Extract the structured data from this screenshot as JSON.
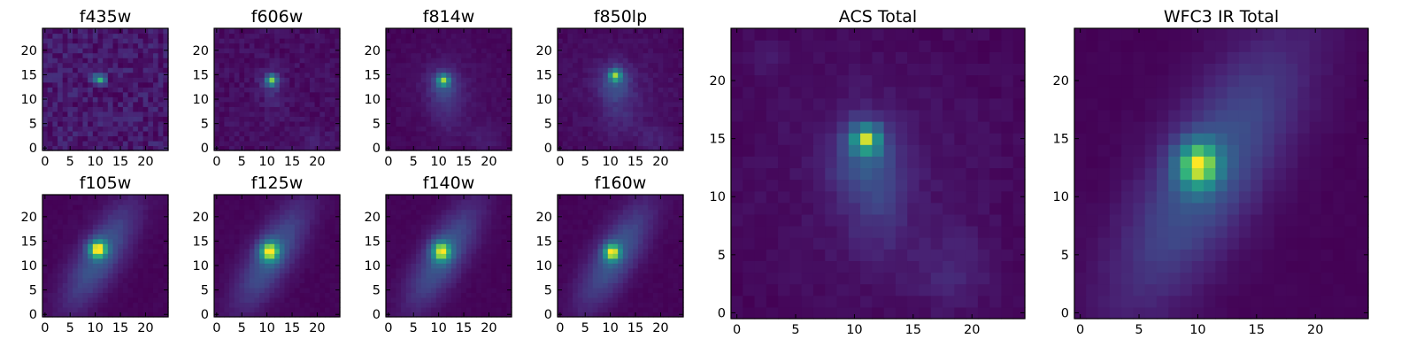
{
  "figure": {
    "colormap": "viridis",
    "chart_data": [
      {
        "type": "heatmap",
        "title": "f435w",
        "grid_size": 25,
        "noise": 0.14,
        "max_level": 0.75,
        "x_ticks": [
          0,
          5,
          10,
          15,
          20
        ],
        "y_ticks": [
          0,
          5,
          10,
          15,
          20
        ],
        "xlim": [
          -0.5,
          24.5
        ],
        "ylim": [
          -0.5,
          24.5
        ],
        "components": [
          {
            "cx": 11,
            "cy": 14,
            "sx": 0.7,
            "sy": 0.7,
            "rho": 0,
            "amp": 1.0
          },
          {
            "cx": 10.2,
            "cy": 14.6,
            "sx": 0.8,
            "sy": 0.6,
            "rho": 0,
            "amp": 0.35
          }
        ]
      },
      {
        "type": "heatmap",
        "title": "f606w",
        "grid_size": 25,
        "noise": 0.07,
        "max_level": 0.85,
        "x_ticks": [
          0,
          5,
          10,
          15,
          20
        ],
        "y_ticks": [
          0,
          5,
          10,
          15,
          20
        ],
        "xlim": [
          -0.5,
          24.5
        ],
        "ylim": [
          -0.5,
          24.5
        ],
        "components": [
          {
            "cx": 11,
            "cy": 14,
            "sx": 0.8,
            "sy": 0.8,
            "rho": 0,
            "amp": 1.0
          },
          {
            "cx": 10.5,
            "cy": 13.5,
            "sx": 1.8,
            "sy": 1.8,
            "rho": 0,
            "amp": 0.18
          },
          {
            "cx": 11.5,
            "cy": 10,
            "sx": 1.5,
            "sy": 2.5,
            "rho": 0,
            "amp": 0.1
          },
          {
            "cx": 19,
            "cy": 2,
            "sx": 2.5,
            "sy": 2.0,
            "rho": 0,
            "amp": 0.06
          }
        ]
      },
      {
        "type": "heatmap",
        "title": "f814w",
        "grid_size": 25,
        "noise": 0.04,
        "max_level": 0.9,
        "x_ticks": [
          0,
          5,
          10,
          15,
          20
        ],
        "y_ticks": [
          0,
          5,
          10,
          15,
          20
        ],
        "xlim": [
          -0.5,
          24.5
        ],
        "ylim": [
          -0.5,
          24.5
        ],
        "components": [
          {
            "cx": 11,
            "cy": 14,
            "sx": 0.9,
            "sy": 0.9,
            "rho": 0,
            "amp": 1.0
          },
          {
            "cx": 10.8,
            "cy": 13,
            "sx": 2.2,
            "sy": 2.5,
            "rho": 0,
            "amp": 0.3
          },
          {
            "cx": 12,
            "cy": 8,
            "sx": 2.5,
            "sy": 4.0,
            "rho": 0,
            "amp": 0.15
          },
          {
            "cx": 19,
            "cy": 2,
            "sx": 2.5,
            "sy": 2.0,
            "rho": 0,
            "amp": 0.12
          },
          {
            "cx": 12,
            "cy": 12,
            "sx": 8.0,
            "sy": 8.0,
            "rho": 0,
            "amp": 0.08
          }
        ]
      },
      {
        "type": "heatmap",
        "title": "f850lp",
        "grid_size": 25,
        "noise": 0.05,
        "max_level": 0.9,
        "x_ticks": [
          0,
          5,
          10,
          15,
          20
        ],
        "y_ticks": [
          0,
          5,
          10,
          15,
          20
        ],
        "xlim": [
          -0.5,
          24.5
        ],
        "ylim": [
          -0.5,
          24.5
        ],
        "components": [
          {
            "cx": 11,
            "cy": 15,
            "sx": 0.9,
            "sy": 0.9,
            "rho": 0,
            "amp": 1.0
          },
          {
            "cx": 10.8,
            "cy": 13.5,
            "sx": 2.2,
            "sy": 2.5,
            "rho": 0,
            "amp": 0.35
          },
          {
            "cx": 12,
            "cy": 8,
            "sx": 2.5,
            "sy": 4.0,
            "rho": 0,
            "amp": 0.15
          },
          {
            "cx": 19,
            "cy": 2,
            "sx": 2.5,
            "sy": 2.0,
            "rho": 0,
            "amp": 0.14
          },
          {
            "cx": 12,
            "cy": 12,
            "sx": 8.0,
            "sy": 8.0,
            "rho": 0,
            "amp": 0.1
          }
        ]
      },
      {
        "type": "heatmap",
        "title": "ACS Total",
        "grid_size": 25,
        "noise": 0.04,
        "max_level": 0.95,
        "x_ticks": [
          0,
          5,
          10,
          15,
          20
        ],
        "y_ticks": [
          0,
          5,
          10,
          15,
          20
        ],
        "xlim": [
          -0.5,
          24.5
        ],
        "ylim": [
          -0.5,
          24.5
        ],
        "components": [
          {
            "cx": 11,
            "cy": 15,
            "sx": 0.9,
            "sy": 0.9,
            "rho": 0,
            "amp": 1.0
          },
          {
            "cx": 10.8,
            "cy": 13.5,
            "sx": 2.0,
            "sy": 2.5,
            "rho": 0,
            "amp": 0.35
          },
          {
            "cx": 12,
            "cy": 9,
            "sx": 2.0,
            "sy": 3.5,
            "rho": 0,
            "amp": 0.18
          },
          {
            "cx": 18.5,
            "cy": 3.5,
            "sx": 2.2,
            "sy": 2.5,
            "rho": 0,
            "amp": 0.16
          },
          {
            "cx": 2,
            "cy": 22,
            "sx": 1.0,
            "sy": 1.0,
            "rho": 0,
            "amp": 0.12
          },
          {
            "cx": 12,
            "cy": 12,
            "sx": 8.0,
            "sy": 8.0,
            "rho": 0,
            "amp": 0.1
          }
        ]
      },
      {
        "type": "heatmap",
        "title": "f105w",
        "grid_size": 25,
        "noise": 0.02,
        "max_level": 1.0,
        "x_ticks": [
          0,
          5,
          10,
          15,
          20
        ],
        "y_ticks": [
          0,
          5,
          10,
          15,
          20
        ],
        "xlim": [
          -0.5,
          24.5
        ],
        "ylim": [
          -0.5,
          24.5
        ],
        "components": [
          {
            "cx": 10.5,
            "cy": 13.5,
            "sx": 1.3,
            "sy": 1.3,
            "rho": 0,
            "amp": 0.95
          },
          {
            "cx": 11,
            "cy": 12,
            "sx": 5.0,
            "sy": 7.5,
            "rho": 0.75,
            "amp": 0.42
          }
        ]
      },
      {
        "type": "heatmap",
        "title": "f125w",
        "grid_size": 25,
        "noise": 0.02,
        "max_level": 1.0,
        "x_ticks": [
          0,
          5,
          10,
          15,
          20
        ],
        "y_ticks": [
          0,
          5,
          10,
          15,
          20
        ],
        "xlim": [
          -0.5,
          24.5
        ],
        "ylim": [
          -0.5,
          24.5
        ],
        "components": [
          {
            "cx": 10.5,
            "cy": 13,
            "sx": 1.4,
            "sy": 1.5,
            "rho": 0,
            "amp": 0.95
          },
          {
            "cx": 11,
            "cy": 12,
            "sx": 5.0,
            "sy": 7.5,
            "rho": 0.75,
            "amp": 0.45
          }
        ]
      },
      {
        "type": "heatmap",
        "title": "f140w",
        "grid_size": 25,
        "noise": 0.02,
        "max_level": 1.0,
        "x_ticks": [
          0,
          5,
          10,
          15,
          20
        ],
        "y_ticks": [
          0,
          5,
          10,
          15,
          20
        ],
        "xlim": [
          -0.5,
          24.5
        ],
        "ylim": [
          -0.5,
          24.5
        ],
        "components": [
          {
            "cx": 10.5,
            "cy": 13,
            "sx": 1.4,
            "sy": 1.5,
            "rho": 0,
            "amp": 0.95
          },
          {
            "cx": 11,
            "cy": 12,
            "sx": 5.0,
            "sy": 7.5,
            "rho": 0.75,
            "amp": 0.47
          }
        ]
      },
      {
        "type": "heatmap",
        "title": "f160w",
        "grid_size": 25,
        "noise": 0.02,
        "max_level": 1.0,
        "x_ticks": [
          0,
          5,
          10,
          15,
          20
        ],
        "y_ticks": [
          0,
          5,
          10,
          15,
          20
        ],
        "xlim": [
          -0.5,
          24.5
        ],
        "ylim": [
          -0.5,
          24.5
        ],
        "components": [
          {
            "cx": 10.3,
            "cy": 12.8,
            "sx": 1.2,
            "sy": 1.3,
            "rho": 0,
            "amp": 0.95
          },
          {
            "cx": 11,
            "cy": 12,
            "sx": 5.0,
            "sy": 7.5,
            "rho": 0.75,
            "amp": 0.45
          }
        ]
      },
      {
        "type": "heatmap",
        "title": "WFC3 IR Total",
        "grid_size": 25,
        "noise": 0.015,
        "max_level": 1.0,
        "x_ticks": [
          0,
          5,
          10,
          15,
          20
        ],
        "y_ticks": [
          0,
          5,
          10,
          15,
          20
        ],
        "xlim": [
          -0.5,
          24.5
        ],
        "ylim": [
          -0.5,
          24.5
        ],
        "components": [
          {
            "cx": 10,
            "cy": 12.8,
            "sx": 1.3,
            "sy": 1.5,
            "rho": 0,
            "amp": 0.95
          },
          {
            "cx": 11,
            "cy": 12,
            "sx": 5.5,
            "sy": 8.0,
            "rho": 0.75,
            "amp": 0.45
          }
        ]
      }
    ]
  }
}
